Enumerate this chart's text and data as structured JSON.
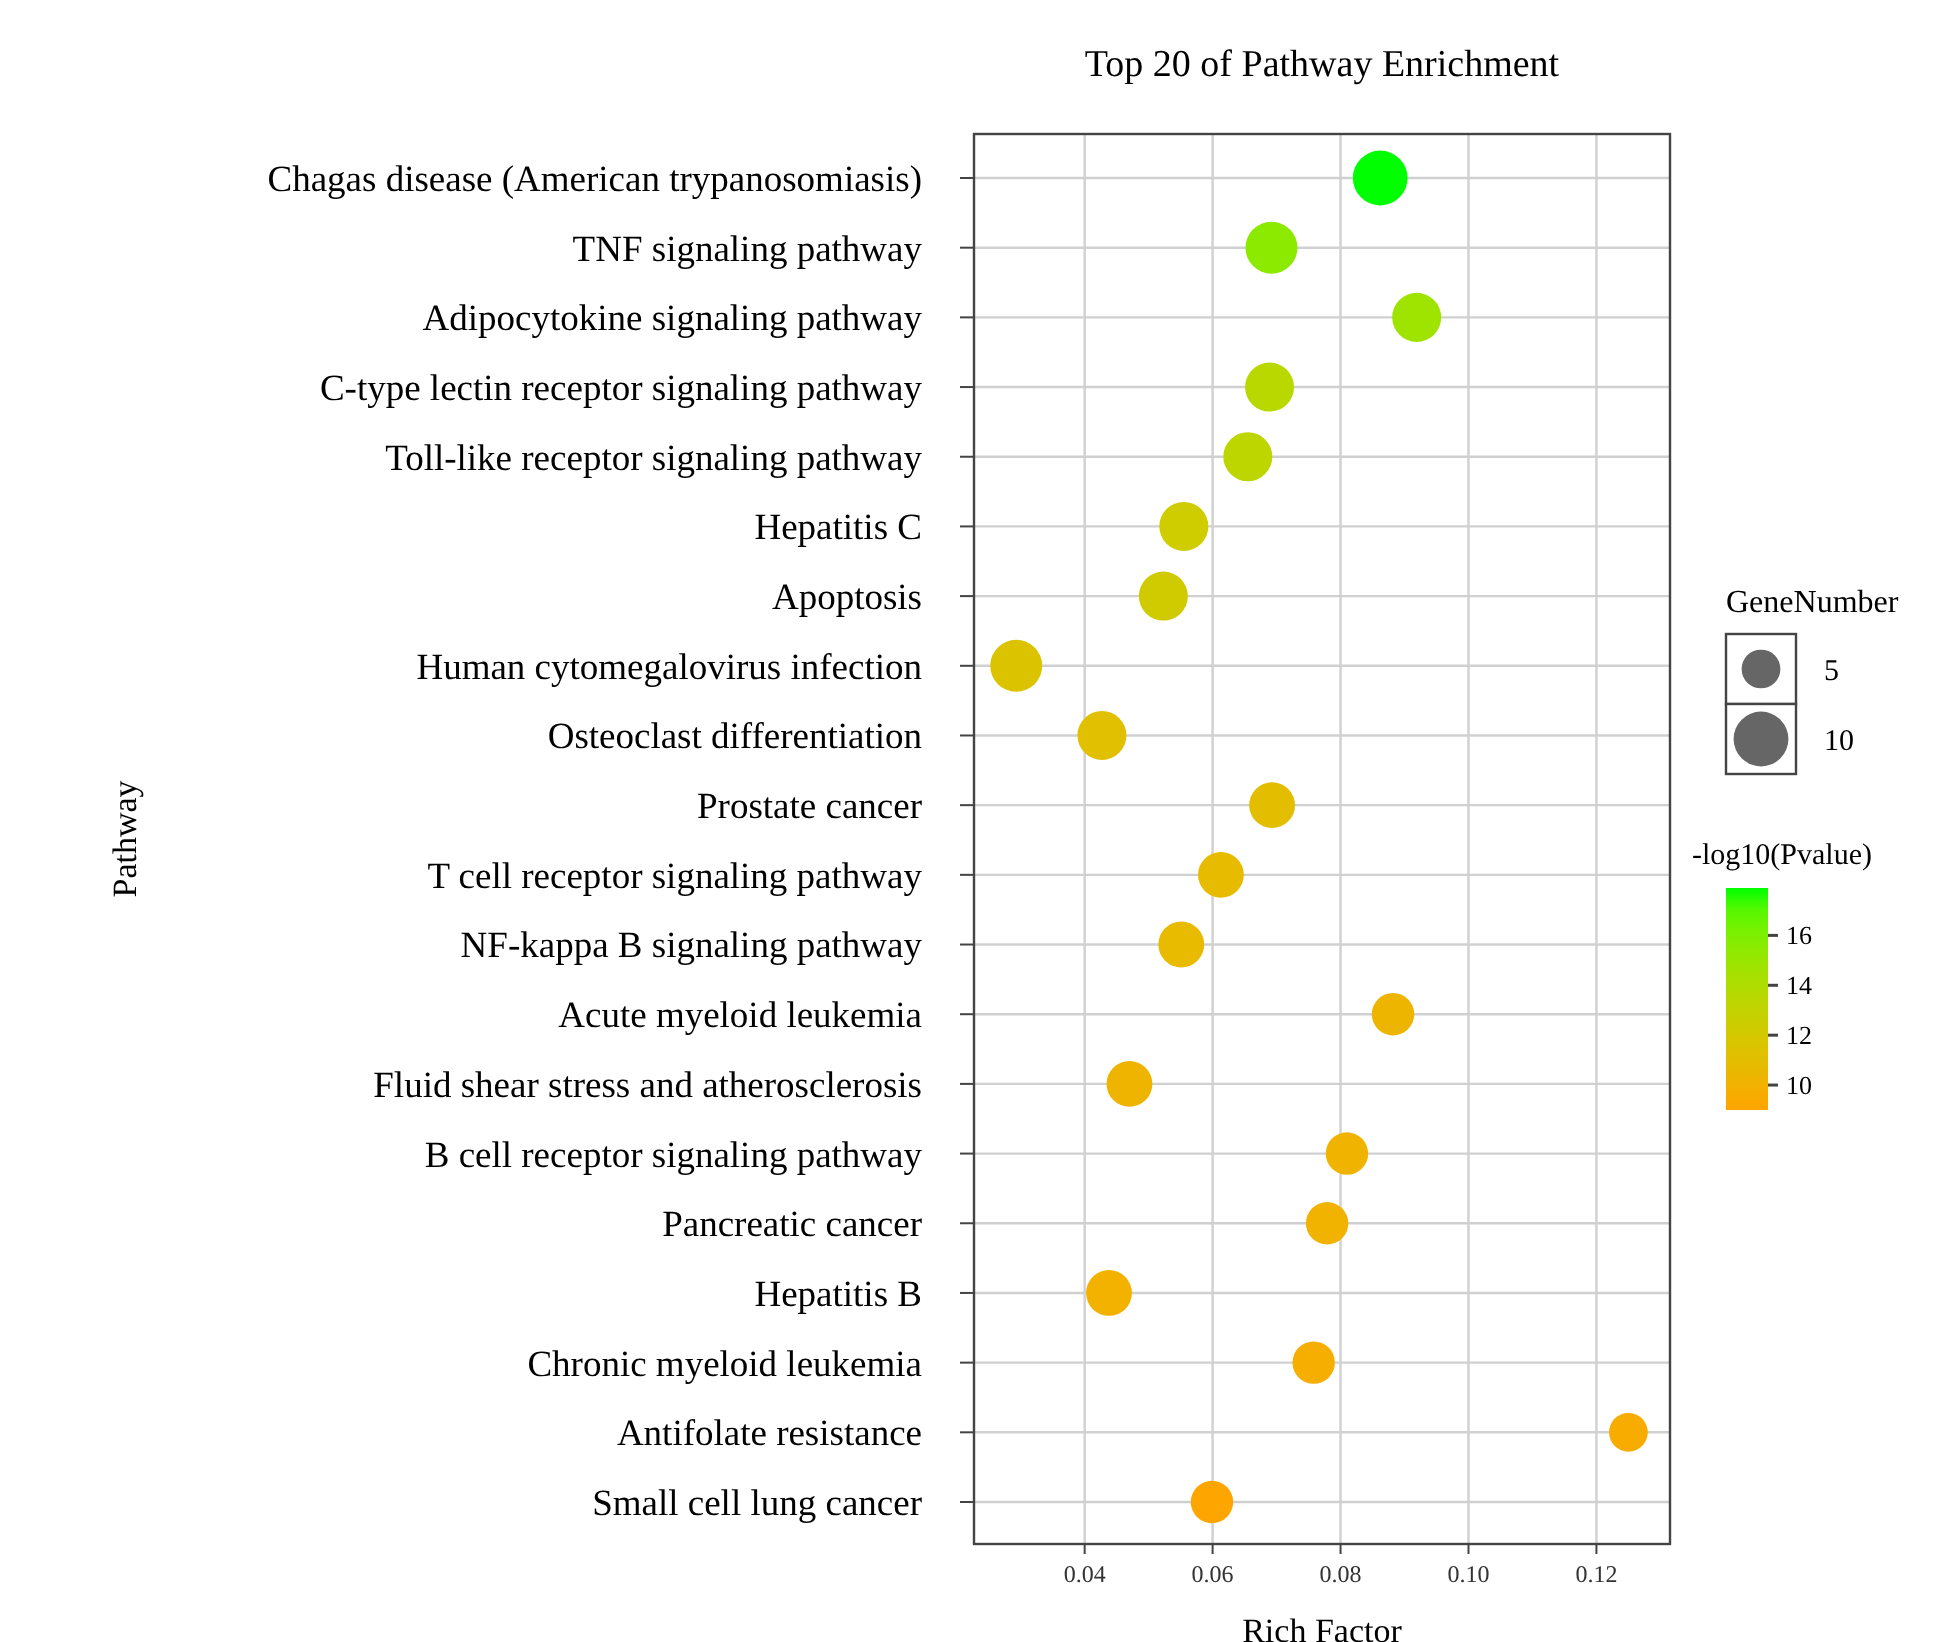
{
  "chart_data": {
    "type": "bubble",
    "title": "Top 20 of Pathway Enrichment",
    "xlabel": "Rich Factor",
    "ylabel": "Pathway",
    "legend_title": "GeneNumber",
    "clabel": "-log10(Pvalue)",
    "orientation": "horizontal",
    "categories": [
      "Chagas disease (American trypanosomiasis)",
      "TNF signaling pathway",
      "Adipocytokine signaling pathway",
      "C-type lectin receptor signaling pathway",
      "Toll-like receptor signaling pathway",
      "Hepatitis C",
      "Apoptosis",
      "Human cytomegalovirus infection",
      "Osteoclast differentiation",
      "Prostate cancer",
      "T cell receptor signaling pathway",
      "NF-kappa B signaling pathway",
      "Acute myeloid leukemia",
      "Fluid shear stress and atherosclerosis",
      "B cell receptor signaling pathway",
      "Pancreatic cancer",
      "Hepatitis B",
      "Chronic myeloid leukemia",
      "Antifolate resistance",
      "Small cell lung cancer"
    ],
    "values": [
      0.0862,
      0.0692,
      0.0919,
      0.0689,
      0.0655,
      0.0555,
      0.0523,
      0.0293,
      0.0427,
      0.0693,
      0.0613,
      0.0551,
      0.0882,
      0.047,
      0.081,
      0.0779,
      0.0438,
      0.0758,
      0.125,
      0.0599
    ],
    "sizes": [
      10,
      9,
      8,
      8,
      8,
      8,
      8,
      9,
      8,
      7,
      7,
      7,
      6,
      7,
      6,
      6,
      7,
      6,
      5,
      6
    ],
    "cvalues": [
      17.9,
      15.5,
      14.8,
      13.5,
      13.3,
      12.3,
      12.2,
      11.5,
      11.2,
      11.0,
      10.8,
      10.7,
      10.3,
      10.2,
      10.1,
      10.0,
      9.9,
      9.7,
      9.5,
      9.0
    ],
    "size_legend": [
      5,
      10
    ],
    "clim": [
      9.0,
      17.9
    ],
    "cticks": [
      10,
      12,
      14,
      16
    ],
    "xlim": [
      0.0227,
      0.1315
    ],
    "xticks": [
      {
        "value": 0.04,
        "label": "0.04"
      },
      {
        "value": 0.06,
        "label": "0.06"
      },
      {
        "value": 0.08,
        "label": "0.08"
      },
      {
        "value": 0.1,
        "label": "0.10"
      },
      {
        "value": 0.12,
        "label": "0.12"
      }
    ],
    "grid": true,
    "marker": "circle"
  }
}
